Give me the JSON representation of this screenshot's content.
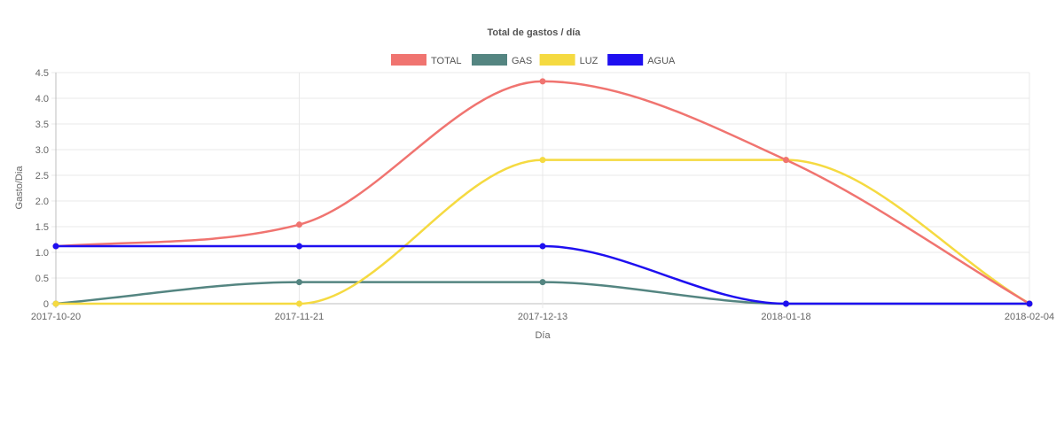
{
  "chart_data": {
    "type": "line",
    "title": "Total de gastos / día",
    "xlabel": "Día",
    "ylabel": "Gasto/Dia",
    "categories": [
      "2017-10-20",
      "2017-11-21",
      "2017-12-13",
      "2018-01-18",
      "2018-02-04"
    ],
    "ylim": [
      0,
      4.5
    ],
    "yticks": [
      "0",
      "0.5",
      "1.0",
      "1.5",
      "2.0",
      "2.5",
      "3.0",
      "3.5",
      "4.0",
      "4.5"
    ],
    "grid": true,
    "legend_position": "top",
    "series": [
      {
        "name": "TOTAL",
        "color": "#f07470",
        "values": [
          1.12,
          1.54,
          4.33,
          2.8,
          0
        ]
      },
      {
        "name": "GAS",
        "color": "#548581",
        "values": [
          0,
          0.42,
          0.42,
          0,
          0
        ]
      },
      {
        "name": "LUZ",
        "color": "#f5da41",
        "values": [
          0,
          0,
          2.8,
          2.8,
          0
        ]
      },
      {
        "name": "AGUA",
        "color": "#1e0ff0",
        "values": [
          1.12,
          1.12,
          1.12,
          0,
          0
        ]
      }
    ]
  }
}
